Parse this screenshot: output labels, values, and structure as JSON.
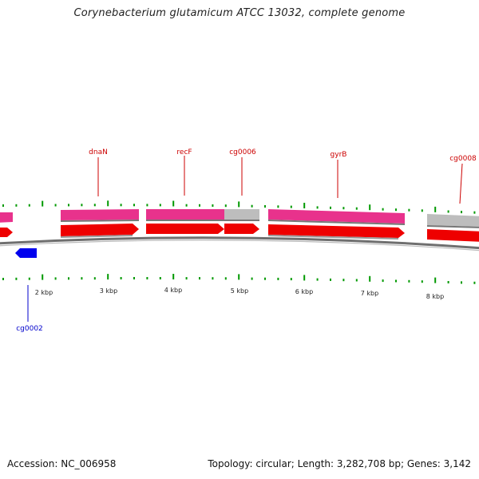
{
  "title": "Corynebacterium glutamicum ATCC 13032, complete genome",
  "footer": {
    "accession": "Accession: NC_006958",
    "summary": "Topology: circular; Length: 3,282,708 bp; Genes: 3,142"
  },
  "colors": {
    "cds_top": "#e8328c",
    "cds_top_gray": "#bdbdbd",
    "cds_main": "#ee0000",
    "gene_reverse": "#0000ee",
    "tick": "#009900",
    "backbone": "#777777",
    "label_forward": "#cc0000",
    "label_reverse": "#0000cc"
  },
  "genes_forward": [
    {
      "name": "dnaN"
    },
    {
      "name": "recF"
    },
    {
      "name": "cg0006"
    },
    {
      "name": "gyrB"
    },
    {
      "name": "cg0008"
    }
  ],
  "genes_reverse": [
    {
      "name": "cg0002"
    }
  ],
  "scale_labels": [
    "2 kbp",
    "3 kbp",
    "4 kbp",
    "5 kbp",
    "6 kbp",
    "7 kbp",
    "8 kbp"
  ]
}
